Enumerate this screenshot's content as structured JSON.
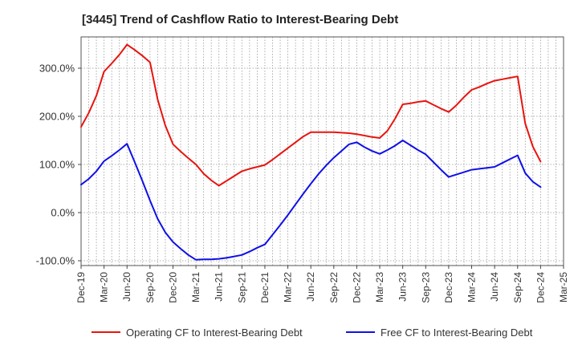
{
  "chart_data": {
    "type": "line",
    "title": "[3445]  Trend of Cashflow Ratio to Interest-Bearing Debt",
    "xlabel": "",
    "ylabel": "",
    "ylim": [
      -110,
      365
    ],
    "grid": true,
    "legend_position": "bottom",
    "y_ticks": [
      {
        "value": -100,
        "label": "-100.0%"
      },
      {
        "value": 0,
        "label": "0.0%"
      },
      {
        "value": 100,
        "label": "100.0%"
      },
      {
        "value": 200,
        "label": "200.0%"
      },
      {
        "value": 300,
        "label": "300.0%"
      }
    ],
    "x_ticks": [
      "Dec-19",
      "Mar-20",
      "Jun-20",
      "Sep-20",
      "Dec-20",
      "Mar-21",
      "Jun-21",
      "Sep-21",
      "Dec-21",
      "Mar-22",
      "Jun-22",
      "Sep-22",
      "Dec-22",
      "Mar-23",
      "Jun-23",
      "Sep-23",
      "Dec-23",
      "Mar-24",
      "Jun-24",
      "Sep-24",
      "Dec-24",
      "Mar-25"
    ],
    "series": [
      {
        "name": "Operating CF to Interest-Bearing Debt",
        "color": "#e8140e",
        "points": [
          [
            "Dec-19",
            178
          ],
          [
            "Jan-20",
            207
          ],
          [
            "Feb-20",
            243
          ],
          [
            "Mar-20",
            293
          ],
          [
            "Apr-20",
            310
          ],
          [
            "May-20",
            328
          ],
          [
            "Jun-20",
            349
          ],
          [
            "Jul-20",
            338
          ],
          [
            "Aug-20",
            326
          ],
          [
            "Sep-20",
            312
          ],
          [
            "Oct-20",
            235
          ],
          [
            "Nov-20",
            181
          ],
          [
            "Dec-20",
            142
          ],
          [
            "Jan-21",
            127
          ],
          [
            "Feb-21",
            113
          ],
          [
            "Mar-21",
            100
          ],
          [
            "Apr-21",
            81
          ],
          [
            "May-21",
            67
          ],
          [
            "Jun-21",
            56
          ],
          [
            "Jul-21",
            66
          ],
          [
            "Aug-21",
            76
          ],
          [
            "Sep-21",
            86
          ],
          [
            "Oct-21",
            91
          ],
          [
            "Nov-21",
            95
          ],
          [
            "Dec-21",
            99
          ],
          [
            "Jan-22",
            110
          ],
          [
            "Feb-22",
            122
          ],
          [
            "Mar-22",
            134
          ],
          [
            "Apr-22",
            146
          ],
          [
            "May-22",
            158
          ],
          [
            "Jun-22",
            167
          ],
          [
            "Jul-22",
            167
          ],
          [
            "Aug-22",
            167
          ],
          [
            "Sep-22",
            167
          ],
          [
            "Oct-22",
            166
          ],
          [
            "Nov-22",
            165
          ],
          [
            "Dec-22",
            163
          ],
          [
            "Jan-23",
            160
          ],
          [
            "Feb-23",
            157
          ],
          [
            "Mar-23",
            155
          ],
          [
            "Apr-23",
            170
          ],
          [
            "May-23",
            195
          ],
          [
            "Jun-23",
            225
          ],
          [
            "Jul-23",
            227
          ],
          [
            "Aug-23",
            230
          ],
          [
            "Sep-23",
            232
          ],
          [
            "Oct-23",
            224
          ],
          [
            "Nov-23",
            216
          ],
          [
            "Dec-23",
            209
          ],
          [
            "Jan-24",
            223
          ],
          [
            "Feb-24",
            240
          ],
          [
            "Mar-24",
            255
          ],
          [
            "Apr-24",
            261
          ],
          [
            "May-24",
            268
          ],
          [
            "Jun-24",
            274
          ],
          [
            "Jul-24",
            277
          ],
          [
            "Aug-24",
            280
          ],
          [
            "Sep-24",
            283
          ],
          [
            "Oct-24",
            185
          ],
          [
            "Nov-24",
            137
          ],
          [
            "Dec-24",
            106
          ]
        ]
      },
      {
        "name": "Free CF to Interest-Bearing Debt",
        "color": "#1010e8",
        "points": [
          [
            "Dec-19",
            58
          ],
          [
            "Jan-20",
            70
          ],
          [
            "Feb-20",
            86
          ],
          [
            "Mar-20",
            107
          ],
          [
            "Apr-20",
            118
          ],
          [
            "May-20",
            130
          ],
          [
            "Jun-20",
            143
          ],
          [
            "Jul-20",
            105
          ],
          [
            "Aug-20",
            66
          ],
          [
            "Sep-20",
            25
          ],
          [
            "Oct-20",
            -13
          ],
          [
            "Nov-20",
            -41
          ],
          [
            "Dec-20",
            -61
          ],
          [
            "Jan-21",
            -75
          ],
          [
            "Feb-21",
            -88
          ],
          [
            "Mar-21",
            -98
          ],
          [
            "Apr-21",
            -97
          ],
          [
            "May-21",
            -97
          ],
          [
            "Jun-21",
            -96
          ],
          [
            "Jul-21",
            -94
          ],
          [
            "Aug-21",
            -91
          ],
          [
            "Sep-21",
            -88
          ],
          [
            "Oct-21",
            -81
          ],
          [
            "Nov-21",
            -73
          ],
          [
            "Dec-21",
            -66
          ],
          [
            "Jan-22",
            -46
          ],
          [
            "Feb-22",
            -26
          ],
          [
            "Mar-22",
            -5
          ],
          [
            "Apr-22",
            17
          ],
          [
            "May-22",
            39
          ],
          [
            "Jun-22",
            60
          ],
          [
            "Jul-22",
            80
          ],
          [
            "Aug-22",
            98
          ],
          [
            "Sep-22",
            114
          ],
          [
            "Oct-22",
            128
          ],
          [
            "Nov-22",
            142
          ],
          [
            "Dec-22",
            146
          ],
          [
            "Jan-23",
            136
          ],
          [
            "Feb-23",
            128
          ],
          [
            "Mar-23",
            122
          ],
          [
            "Apr-23",
            130
          ],
          [
            "May-23",
            139
          ],
          [
            "Jun-23",
            150
          ],
          [
            "Jul-23",
            140
          ],
          [
            "Aug-23",
            130
          ],
          [
            "Sep-23",
            121
          ],
          [
            "Oct-23",
            105
          ],
          [
            "Nov-23",
            89
          ],
          [
            "Dec-23",
            74
          ],
          [
            "Jan-24",
            79
          ],
          [
            "Feb-24",
            84
          ],
          [
            "Mar-24",
            89
          ],
          [
            "Apr-24",
            91
          ],
          [
            "May-24",
            93
          ],
          [
            "Jun-24",
            95
          ],
          [
            "Jul-24",
            103
          ],
          [
            "Aug-24",
            111
          ],
          [
            "Sep-24",
            119
          ],
          [
            "Oct-24",
            82
          ],
          [
            "Nov-24",
            64
          ],
          [
            "Dec-24",
            53
          ]
        ]
      }
    ]
  }
}
